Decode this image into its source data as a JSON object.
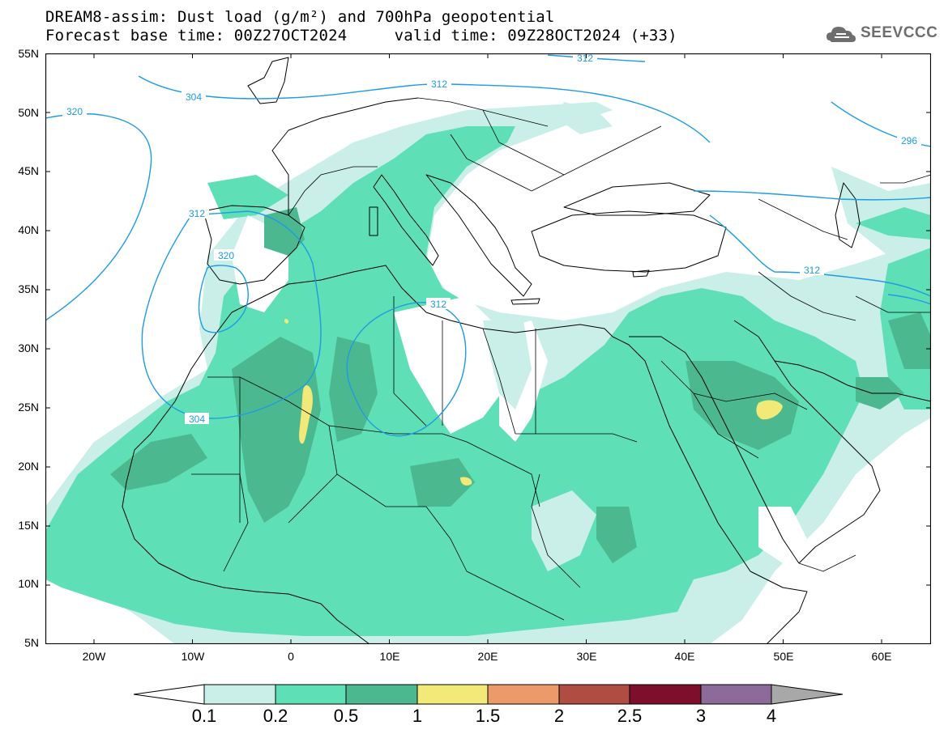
{
  "title": {
    "line1": "DREAM8-assim: Dust load (g/m²) and 700hPa geopotential",
    "line2": "Forecast base time: 00Z27OCT2024     valid time: 09Z28OCT2024 (+33)"
  },
  "logo": {
    "text": "SEEVCCC",
    "icon": "cloud-logo-icon"
  },
  "axes": {
    "lat_labels": [
      "55N",
      "50N",
      "45N",
      "40N",
      "35N",
      "30N",
      "25N",
      "20N",
      "15N",
      "10N",
      "5N"
    ],
    "lon_labels": [
      "20W",
      "10W",
      "0",
      "10E",
      "20E",
      "30E",
      "40E",
      "50E",
      "60E"
    ],
    "lat_range": [
      5,
      55
    ],
    "lon_range": [
      -25,
      65
    ]
  },
  "contours": {
    "color": "#1e9be6",
    "labels": [
      "320",
      "312",
      "304",
      "312",
      "320",
      "312",
      "304",
      "296",
      "312",
      "312"
    ]
  },
  "colorbar": {
    "levels": [
      "0.1",
      "0.2",
      "0.5",
      "1",
      "1.5",
      "2",
      "2.5",
      "3",
      "4"
    ],
    "colors": [
      "#c9efe8",
      "#5fdfb5",
      "#4cb890",
      "#f2ea78",
      "#ec9a6a",
      "#b04d42",
      "#7e0f2c",
      "#8c6b9a"
    ],
    "under_color": "#ffffff",
    "over_color": "#a8a8a8"
  }
}
